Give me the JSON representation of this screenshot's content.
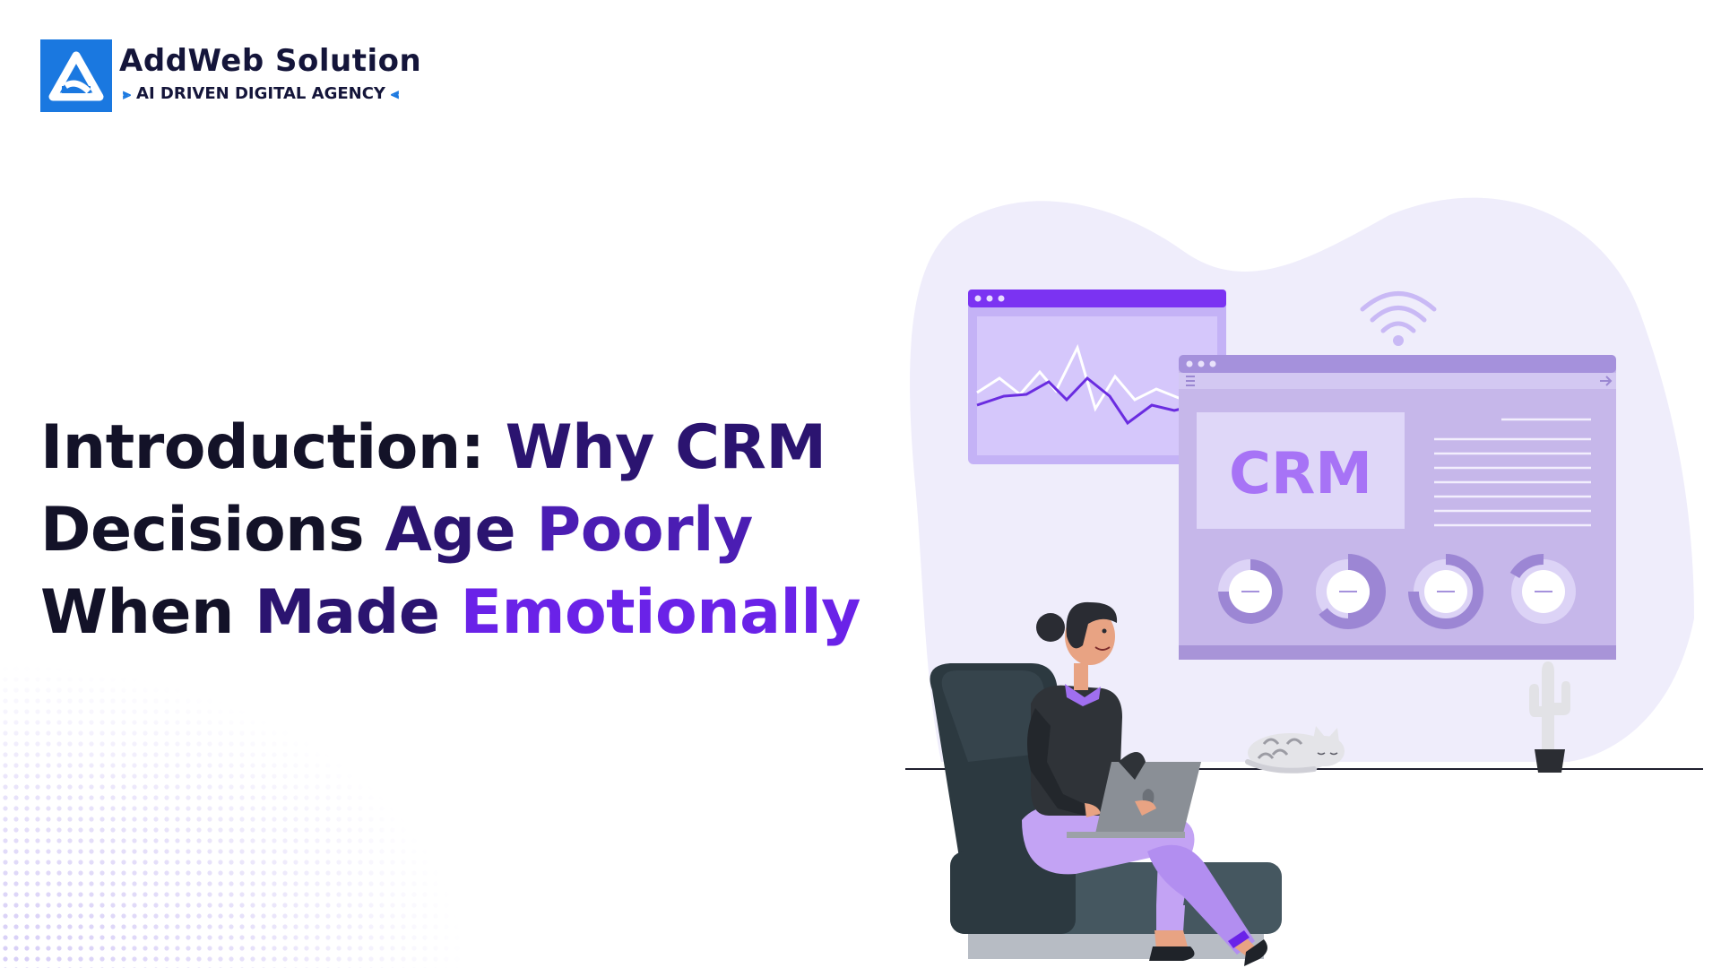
{
  "brand": {
    "name": "AddWeb Solution",
    "tagline": "AI DRIVEN DIGITAL AGENCY"
  },
  "headline": {
    "line1": [
      "Introduction: ",
      "Why CRM"
    ],
    "line2": [
      "Decisions ",
      "Age ",
      "Poorly"
    ],
    "line3": [
      "When ",
      "Made ",
      "Emotionally"
    ]
  },
  "illustration": {
    "screen_label": "CRM"
  },
  "colors": {
    "brand_blue": "#1a78e0",
    "heading_dark": "#131228",
    "accent_purple": "#6a22e8",
    "lavender": "#c9b8f5"
  }
}
